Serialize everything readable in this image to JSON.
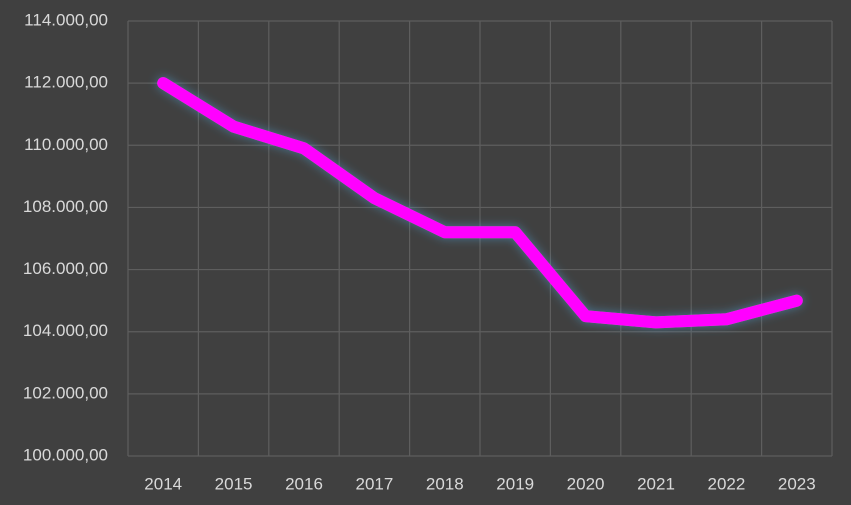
{
  "chart_data": {
    "type": "line",
    "categories": [
      "2014",
      "2015",
      "2016",
      "2017",
      "2018",
      "2019",
      "2020",
      "2021",
      "2022",
      "2023"
    ],
    "values": [
      112000,
      110600,
      109900,
      108300,
      107200,
      107200,
      104500,
      104300,
      104400,
      105000
    ],
    "color": "#ff00ff",
    "ylim": [
      100000,
      114000
    ],
    "yticks": [
      {
        "value": 100000,
        "label": "100.000,00"
      },
      {
        "value": 102000,
        "label": "102.000,00"
      },
      {
        "value": 104000,
        "label": "104.000,00"
      },
      {
        "value": 106000,
        "label": "106.000,00"
      },
      {
        "value": 108000,
        "label": "108.000,00"
      },
      {
        "value": 110000,
        "label": "110.000,00"
      },
      {
        "value": 112000,
        "label": "112.000,00"
      },
      {
        "value": 114000,
        "label": "114.000,00"
      }
    ],
    "grid": true
  }
}
